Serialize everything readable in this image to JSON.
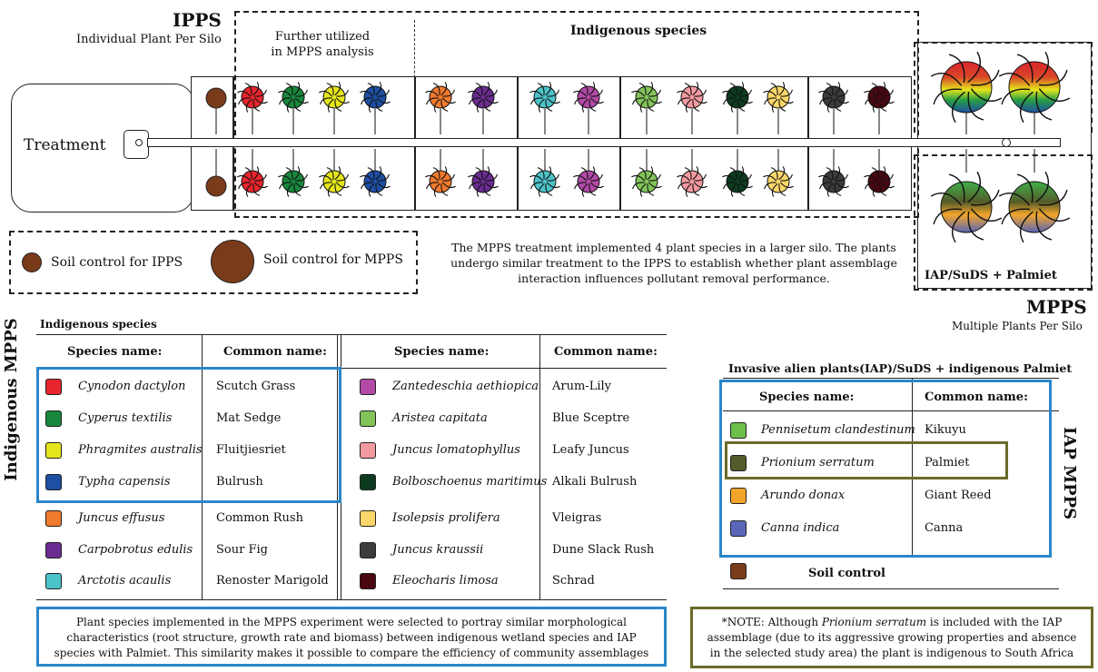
{
  "ipps": {
    "title": "IPPS",
    "subtitle": "Individual Plant Per Silo"
  },
  "mpps": {
    "title": "MPPS",
    "subtitle": "Multiple Plants Per Silo"
  },
  "further_utilized": "Further utilized in MPPS analysis",
  "indigenous_species_header": "Indigenous species",
  "treatment_label": "Treatment",
  "legend": {
    "soil_ipps": "Soil control for IPPS",
    "soil_mpps": "Soil control for MPPS"
  },
  "mpps_desc": "The MPPS treatment implemented 4 plant species in a larger silo. The plants undergo similar treatment to the IPPS to establish whether plant assemblage interaction influences pollutant removal performance.",
  "iap_box_label": "IAP/SuDS + Palmiet",
  "colors": {
    "soil": "#7a3b1a",
    "red": "#e8252d",
    "green": "#17873b",
    "yellow": "#e5e51c",
    "blue": "#1d4fa3",
    "orange": "#f07a2e",
    "purple": "#6a2c91",
    "cyan": "#4cc2c9",
    "magenta": "#b24aa6",
    "lightgreen": "#82c35a",
    "pink": "#f29aa0",
    "darkgreen": "#0d3b1f",
    "lightyellow": "#fbd76a",
    "gray": "#3b3b3b",
    "maroon": "#4a0710",
    "iap_green": "#6cc04a",
    "palmiet": "#555b2a",
    "iap_orange": "#f2a52a",
    "iap_blue": "#5a66b8",
    "highlight_blue": "#2a86c8",
    "highlight_olive": "#6b6b2a"
  },
  "indigenous_table": {
    "title": "Indigenous species",
    "side_label": "Indigenous MPPS",
    "headers": {
      "species": "Species name:",
      "common": "Common name:"
    },
    "left": [
      {
        "species": "Cynodon dactylon",
        "common": "Scutch Grass",
        "color": "#e8252d"
      },
      {
        "species": "Cyperus textilis",
        "common": "Mat Sedge",
        "color": "#17873b"
      },
      {
        "species": "Phragmites australis",
        "common": "Fluitjiesriet",
        "color": "#e5e51c"
      },
      {
        "species": "Typha capensis",
        "common": "Bulrush",
        "color": "#1d4fa3"
      },
      {
        "species": "Juncus effusus",
        "common": "Common Rush",
        "color": "#f07a2e"
      },
      {
        "species": "Carpobrotus edulis",
        "common": "Sour Fig",
        "color": "#6a2c91"
      },
      {
        "species": "Arctotis acaulis",
        "common": "Renoster Marigold",
        "color": "#4cc2c9"
      }
    ],
    "right": [
      {
        "species": "Zantedeschia aethiopica",
        "common": "Arum-Lily",
        "color": "#b24aa6"
      },
      {
        "species": "Aristea capitata",
        "common": "Blue Sceptre",
        "color": "#82c35a"
      },
      {
        "species": "Juncus lomatophyllus",
        "common": "Leafy Juncus",
        "color": "#f29aa0"
      },
      {
        "species": "Bolboschoenus maritimus",
        "common": "Alkali Bulrush",
        "color": "#0d3b1f"
      },
      {
        "species": "Isolepsis prolifera",
        "common": "Vleigras",
        "color": "#fbd76a"
      },
      {
        "species": "Juncus kraussii",
        "common": "Dune Slack Rush",
        "color": "#3b3b3b"
      },
      {
        "species": "Eleocharis limosa",
        "common": "Schrad",
        "color": "#4a0710"
      }
    ]
  },
  "iap_table": {
    "title": "Invasive alien plants(IAP)/SuDS + indigenous Palmiet",
    "side_label": "IAP MPPS",
    "headers": {
      "species": "Species name:",
      "common": "Common name:"
    },
    "rows": [
      {
        "species": "Pennisetum clandestinum",
        "common": "Kikuyu",
        "color": "#6cc04a"
      },
      {
        "species": "Prionium serratum",
        "common": "Palmiet",
        "color": "#555b2a"
      },
      {
        "species": "Arundo donax",
        "common": "Giant Reed",
        "color": "#f2a52a"
      },
      {
        "species": "Canna indica",
        "common": "Canna",
        "color": "#5a66b8"
      }
    ],
    "soil_control": "Soil control"
  },
  "note_blue": "Plant species implemented in the MPPS experiment were selected to portray similar morphological characteristics (root structure, growth rate and biomass) between indigenous wetland species and IAP species with Palmiet. This similarity makes it possible to compare the efficiency of community assemblages",
  "note_olive_prefix": "*NOTE: Although ",
  "note_olive_species": "Prionium serratum",
  "note_olive_suffix": " is included with the IAP assemblage (due to its aggressive growing properties and absence in the selected study area) the plant is indigenous to South Africa"
}
